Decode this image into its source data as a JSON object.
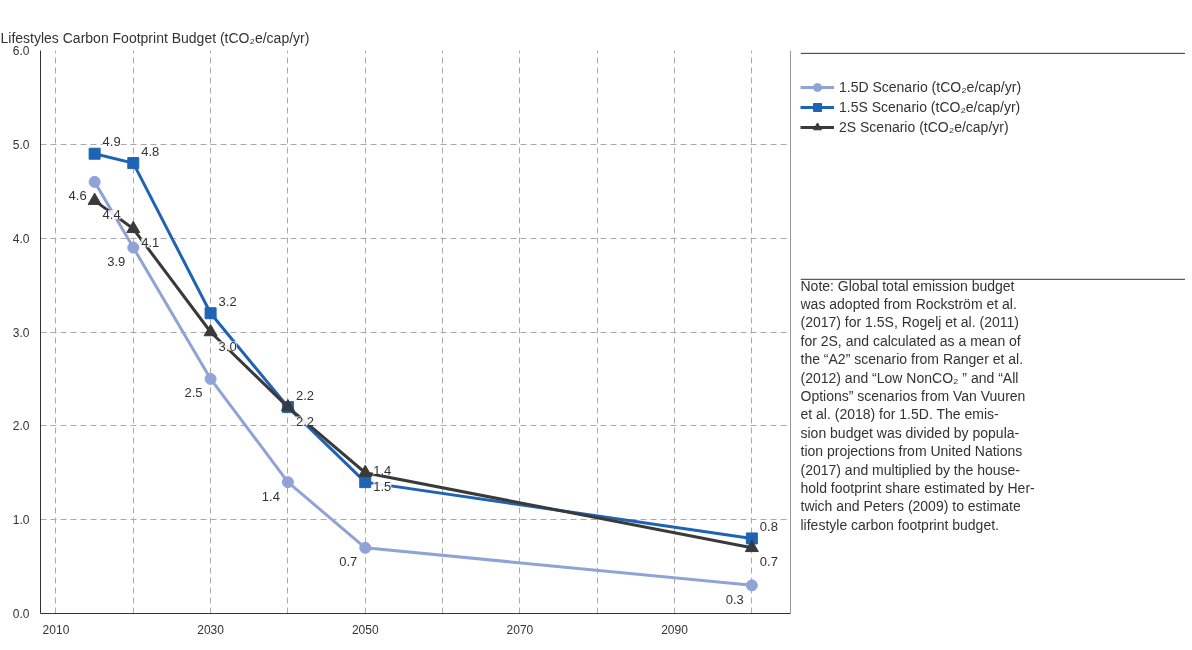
{
  "chart_data": {
    "type": "line",
    "title": "Lifestyles Carbon Footprint Budget (tCO₂e/cap/yr)",
    "x": [
      2015,
      2020,
      2030,
      2040,
      2050,
      2100
    ],
    "series": [
      {
        "name": "1.5D Scenario (tCO₂e/cap/yr)",
        "color": "#8fa3d6",
        "marker": "circle",
        "values": [
          4.6,
          3.9,
          2.5,
          1.4,
          0.7,
          0.3
        ],
        "value_labels": [
          "4.6",
          "3.9",
          "2.5",
          "1.4",
          "0.7",
          "0.3"
        ]
      },
      {
        "name": "1.5S Scenario (tCO₂e/cap/yr)",
        "color": "#1f63b5",
        "marker": "square",
        "values": [
          4.9,
          4.8,
          3.2,
          2.2,
          1.4,
          0.8
        ],
        "value_labels": [
          "4.9",
          "4.8",
          "3.2",
          "2.2",
          "1.4",
          "0.8"
        ]
      },
      {
        "name": "2S Scenario (tCO₂e/cap/yr)",
        "color": "#3a3a3a",
        "marker": "triangle",
        "values": [
          4.4,
          4.1,
          3.0,
          2.2,
          1.5,
          0.7
        ],
        "value_labels": [
          "4.4",
          "4.1",
          "3.0",
          "2.2",
          "1.5",
          "0.7"
        ]
      }
    ],
    "xlim": [
      2008,
      2105
    ],
    "xticks": [
      2010,
      {
        "value": 2020,
        "label": null
      },
      2030,
      {
        "value": 2040,
        "label": null
      },
      2050,
      {
        "value": 2060,
        "label": null
      },
      2070,
      {
        "value": 2080,
        "label": null
      },
      2090,
      {
        "value": 2100,
        "label": null
      }
    ],
    "ylim": [
      0,
      6
    ],
    "yticks": [
      {
        "value": 0,
        "label": "0.0"
      },
      {
        "value": 1,
        "label": "1.0"
      },
      {
        "value": 2,
        "label": "2.0"
      },
      {
        "value": 3,
        "label": "3.0"
      },
      {
        "value": 4,
        "label": "4.0"
      },
      {
        "value": 5,
        "label": "5.0"
      },
      {
        "value": 6,
        "label": "6.0"
      }
    ],
    "grid": true,
    "legend": "right",
    "line_style": "solid",
    "annotations": [
      "Note: Global total emission budget\nwas adopted from Rockström et al.\n(2017) for 1.5S, Rogelj et al. (2011)\nfor 2S, and calculated as a mean of\nthe “A2” scenario from Ranger et al.\n(2012) and “Low NonCO₂ ” and “All\nOptions” scenarios from Van Vuuren\net al. (2018) for 1.5D. The emis-\nsion budget was divided by popula-\ntion projections from United Nations\n(2017) and multiplied by the house-\nhold footprint share estimated by Her-\ntwich and Peters (2009) to estimate\nlifestyle carbon footprint budget."
    ]
  }
}
